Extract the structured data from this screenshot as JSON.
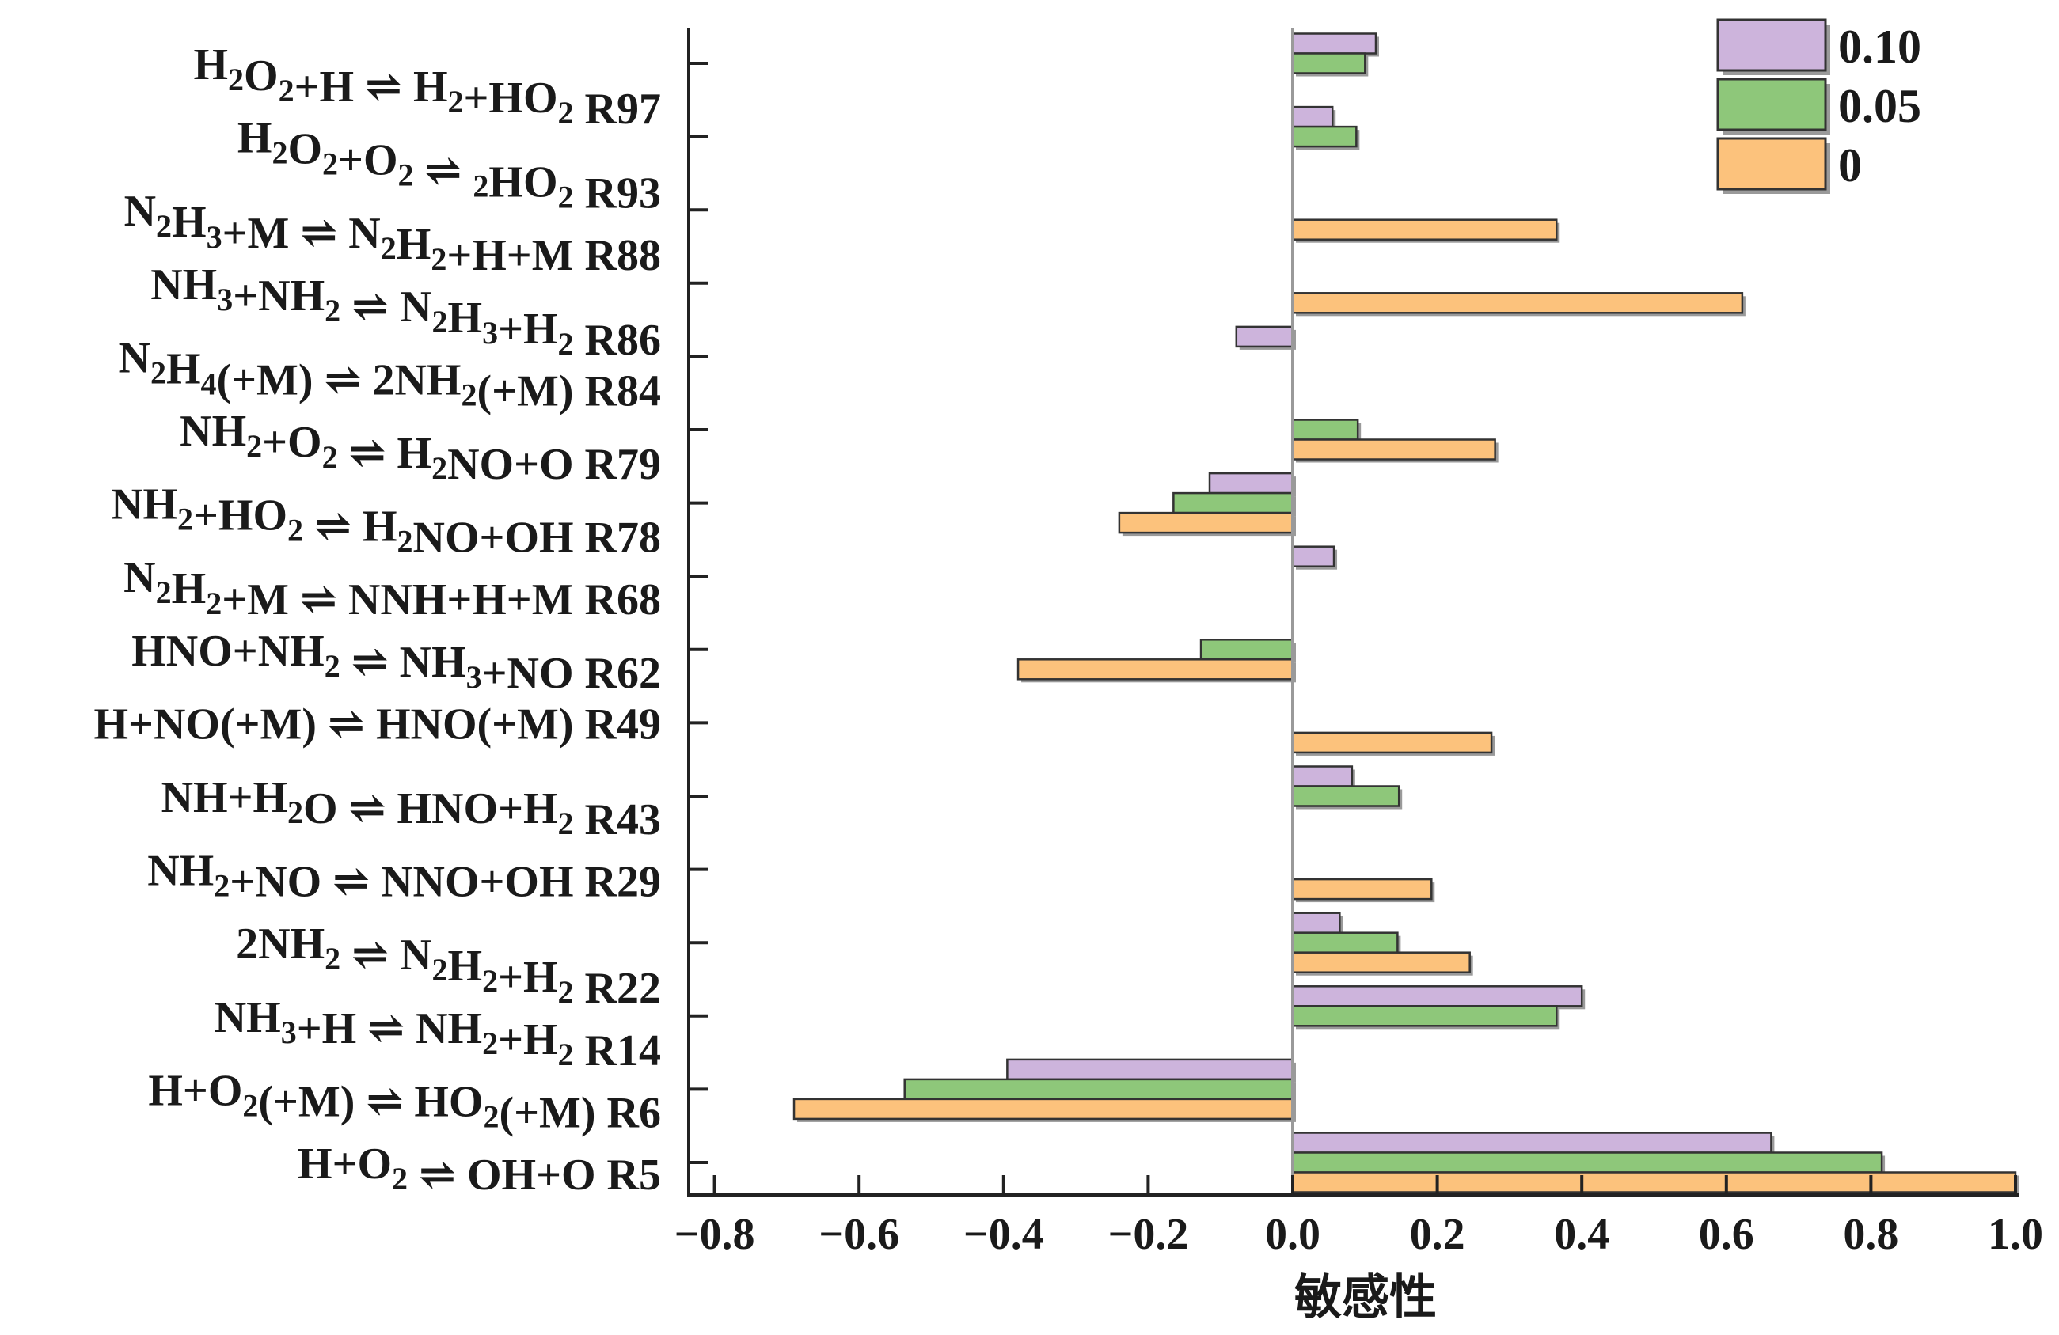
{
  "chart_data": {
    "type": "bar",
    "orientation": "horizontal",
    "xlabel": "敏感性",
    "xlim": [
      -0.8,
      1.0
    ],
    "xticks": [
      -0.8,
      -0.6,
      -0.4,
      -0.2,
      0.0,
      0.2,
      0.4,
      0.6,
      0.8,
      1.0
    ],
    "xtick_labels": [
      "−0.8",
      "−0.6",
      "−0.4",
      "−0.2",
      "0.0",
      "0.2",
      "0.4",
      "0.6",
      "0.8",
      "1.0"
    ],
    "legend_position": "top-right",
    "categories": [
      {
        "id": "R97",
        "parts": [
          [
            "H",
            "n"
          ],
          [
            "2",
            "s"
          ],
          [
            "O",
            "n"
          ],
          [
            "2",
            "s"
          ],
          [
            "+H",
            "n"
          ],
          [
            "⇌",
            "a"
          ],
          [
            "H",
            "n"
          ],
          [
            "2",
            "s"
          ],
          [
            "+HO",
            "n"
          ],
          [
            "2",
            "s"
          ],
          [
            " R97",
            "n"
          ]
        ]
      },
      {
        "id": "R93",
        "parts": [
          [
            "H",
            "n"
          ],
          [
            "2",
            "s"
          ],
          [
            "O",
            "n"
          ],
          [
            "2",
            "s"
          ],
          [
            "+O",
            "n"
          ],
          [
            "2",
            "s"
          ],
          [
            "⇌",
            "a"
          ],
          [
            "2",
            "s"
          ],
          [
            "HO",
            "n"
          ],
          [
            "2",
            "s"
          ],
          [
            " R93",
            "n"
          ]
        ]
      },
      {
        "id": "R88",
        "parts": [
          [
            "N",
            "n"
          ],
          [
            "2",
            "s"
          ],
          [
            "H",
            "n"
          ],
          [
            "3",
            "s"
          ],
          [
            "+M",
            "n"
          ],
          [
            "⇌",
            "a"
          ],
          [
            "N",
            "n"
          ],
          [
            "2",
            "s"
          ],
          [
            "H",
            "n"
          ],
          [
            "2",
            "s"
          ],
          [
            "+H+M R88",
            "n"
          ]
        ]
      },
      {
        "id": "R86",
        "parts": [
          [
            "NH",
            "n"
          ],
          [
            "3",
            "s"
          ],
          [
            "+NH",
            "n"
          ],
          [
            "2",
            "s"
          ],
          [
            "⇌",
            "a"
          ],
          [
            "N",
            "n"
          ],
          [
            "2",
            "s"
          ],
          [
            "H",
            "n"
          ],
          [
            "3",
            "s"
          ],
          [
            "+H",
            "n"
          ],
          [
            "2",
            "s"
          ],
          [
            " R86",
            "n"
          ]
        ]
      },
      {
        "id": "R84",
        "parts": [
          [
            "N",
            "n"
          ],
          [
            "2",
            "s"
          ],
          [
            "H",
            "n"
          ],
          [
            "4",
            "s"
          ],
          [
            "(+M)",
            "n"
          ],
          [
            "⇌",
            "a"
          ],
          [
            "2NH",
            "n"
          ],
          [
            "2",
            "s"
          ],
          [
            "(+M) R84",
            "n"
          ]
        ]
      },
      {
        "id": "R79",
        "parts": [
          [
            "NH",
            "n"
          ],
          [
            "2",
            "s"
          ],
          [
            "+O",
            "n"
          ],
          [
            "2",
            "s"
          ],
          [
            "⇌",
            "a"
          ],
          [
            "H",
            "n"
          ],
          [
            "2",
            "s"
          ],
          [
            "NO+O R79",
            "n"
          ]
        ]
      },
      {
        "id": "R78",
        "parts": [
          [
            "NH",
            "n"
          ],
          [
            "2",
            "s"
          ],
          [
            "+HO",
            "n"
          ],
          [
            "2",
            "s"
          ],
          [
            "⇌",
            "a"
          ],
          [
            "H",
            "n"
          ],
          [
            "2",
            "s"
          ],
          [
            "NO+OH R78",
            "n"
          ]
        ]
      },
      {
        "id": "R68",
        "parts": [
          [
            "N",
            "n"
          ],
          [
            "2",
            "s"
          ],
          [
            "H",
            "n"
          ],
          [
            "2",
            "s"
          ],
          [
            "+M",
            "n"
          ],
          [
            "⇌",
            "a"
          ],
          [
            "NNH+H+M R68",
            "n"
          ]
        ]
      },
      {
        "id": "R62",
        "parts": [
          [
            "HNO+NH",
            "n"
          ],
          [
            "2",
            "s"
          ],
          [
            "⇌",
            "a"
          ],
          [
            "NH",
            "n"
          ],
          [
            "3",
            "s"
          ],
          [
            "+NO R62",
            "n"
          ]
        ]
      },
      {
        "id": "R49",
        "parts": [
          [
            "H+NO(+M)",
            "n"
          ],
          [
            "⇌",
            "a"
          ],
          [
            "HNO(+M) R49",
            "n"
          ]
        ]
      },
      {
        "id": "R43",
        "parts": [
          [
            "NH+H",
            "n"
          ],
          [
            "2",
            "s"
          ],
          [
            "O",
            "n"
          ],
          [
            "⇌",
            "a"
          ],
          [
            "HNO+H",
            "n"
          ],
          [
            "2",
            "s"
          ],
          [
            " R43",
            "n"
          ]
        ]
      },
      {
        "id": "R29",
        "parts": [
          [
            "NH",
            "n"
          ],
          [
            "2",
            "s"
          ],
          [
            "+NO",
            "n"
          ],
          [
            "⇌",
            "a"
          ],
          [
            "NNO+OH R29",
            "n"
          ]
        ]
      },
      {
        "id": "R22",
        "parts": [
          [
            "2NH",
            "n"
          ],
          [
            "2",
            "s"
          ],
          [
            "⇌",
            "a"
          ],
          [
            "N",
            "n"
          ],
          [
            "2",
            "s"
          ],
          [
            "H",
            "n"
          ],
          [
            "2",
            "s"
          ],
          [
            "+H",
            "n"
          ],
          [
            "2",
            "s"
          ],
          [
            " R22",
            "n"
          ]
        ]
      },
      {
        "id": "R14",
        "parts": [
          [
            "NH",
            "n"
          ],
          [
            "3",
            "s"
          ],
          [
            "+H",
            "n"
          ],
          [
            "⇌",
            "a"
          ],
          [
            "NH",
            "n"
          ],
          [
            "2",
            "s"
          ],
          [
            "+H",
            "n"
          ],
          [
            "2",
            "s"
          ],
          [
            " R14",
            "n"
          ]
        ]
      },
      {
        "id": "R6",
        "parts": [
          [
            "H+O",
            "n"
          ],
          [
            "2",
            "s"
          ],
          [
            "(+M)",
            "n"
          ],
          [
            "⇌",
            "a"
          ],
          [
            "HO",
            "n"
          ],
          [
            "2",
            "s"
          ],
          [
            "(+M) R6",
            "n"
          ]
        ]
      },
      {
        "id": "R5",
        "parts": [
          [
            "H+O",
            "n"
          ],
          [
            "2",
            "s"
          ],
          [
            "⇌",
            "a"
          ],
          [
            "OH+O R5",
            "n"
          ]
        ]
      }
    ],
    "series": [
      {
        "name": "0.10",
        "color": "#cdb4dc",
        "values": [
          0.115,
          0.055,
          0,
          0,
          -0.078,
          0,
          -0.115,
          0.057,
          0,
          0,
          0.082,
          0,
          0.065,
          0.4,
          -0.395,
          0.662
        ]
      },
      {
        "name": "0.05",
        "color": "#8ec77a",
        "values": [
          0.1,
          0.088,
          0,
          0,
          0,
          0.09,
          -0.165,
          0,
          -0.127,
          0,
          0.147,
          0,
          0.145,
          0.365,
          -0.537,
          0.815
        ]
      },
      {
        "name": "0",
        "color": "#fcc27c",
        "values": [
          0,
          0,
          0.365,
          0.622,
          0,
          0.28,
          -0.24,
          0,
          -0.38,
          0.275,
          0,
          0.192,
          0.245,
          0,
          -0.69,
          1.0
        ]
      }
    ]
  }
}
